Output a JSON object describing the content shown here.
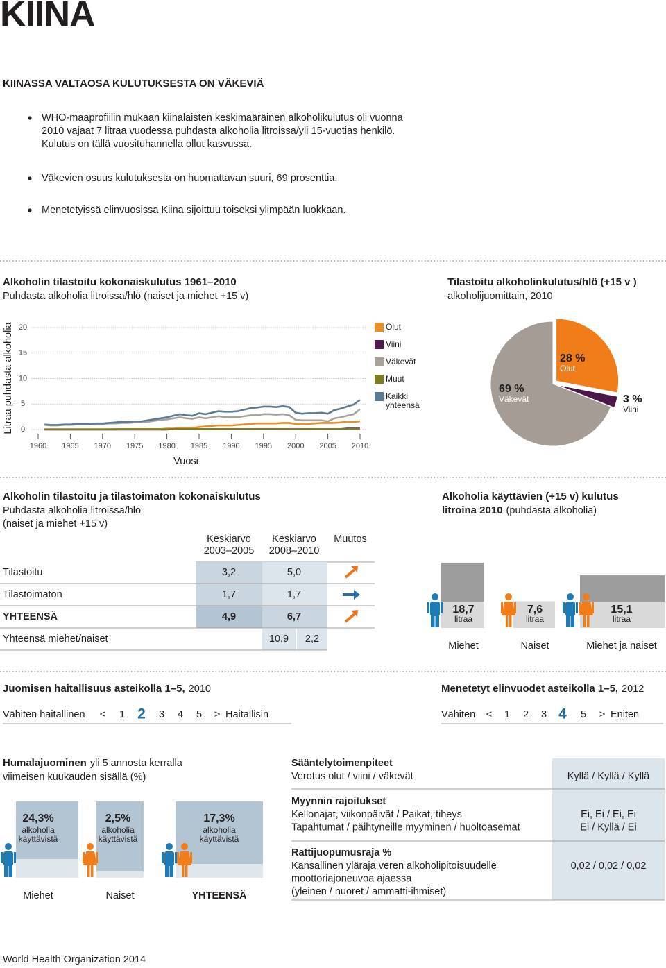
{
  "header": {
    "title": "KIINA"
  },
  "intro": {
    "heading": "KIINASSA VALTAOSA KULUTUKSESTA ON VÄKEVIÄ",
    "bullets": [
      [
        "WHO-maaprofiilin mukaan kiinalaisten keskimääräinen alkoholikulutus oli vuonna",
        "2010 vajaat 7 litraa vuodessa puhdasta alkoholia litroissa/yli 15-vuotias henkilö.",
        "Kulutus on tällä vuosituhannella ollut kasvussa."
      ],
      [
        "Väkevien osuus kulutuksesta on huomattavan suuri, 69 prosenttia."
      ],
      [
        "Menetetyissä elinvuosissa Kiina sijoittuu toiseksi ylimpään luokkaan."
      ]
    ]
  },
  "chart_data": [
    {
      "type": "line",
      "title": "Alkoholin tilastoitu kokonaiskulutus 1961–2010",
      "subtitle": "Puhdasta alkoholia litroissa/hlö (naiset ja miehet +15 v)",
      "y_label": "Litraa puhdasta alkoholia",
      "x_label": "Vuosi",
      "x": [
        1961,
        1962,
        1963,
        1964,
        1965,
        1966,
        1967,
        1968,
        1969,
        1970,
        1971,
        1972,
        1973,
        1974,
        1975,
        1976,
        1977,
        1978,
        1979,
        1980,
        1981,
        1982,
        1983,
        1984,
        1985,
        1986,
        1987,
        1988,
        1989,
        1990,
        1991,
        1992,
        1993,
        1994,
        1995,
        1996,
        1997,
        1998,
        1999,
        2000,
        2001,
        2002,
        2003,
        2004,
        2005,
        2006,
        2007,
        2008,
        2009,
        2010
      ],
      "series": [
        {
          "name": "Olut",
          "color": "#e98d24",
          "values": [
            0.05,
            0.05,
            0.05,
            0.05,
            0.05,
            0.05,
            0.05,
            0.05,
            0.05,
            0.05,
            0.05,
            0.1,
            0.1,
            0.1,
            0.1,
            0.1,
            0.1,
            0.1,
            0.1,
            0.2,
            0.2,
            0.3,
            0.3,
            0.3,
            0.5,
            0.6,
            0.7,
            0.8,
            0.8,
            0.8,
            0.9,
            1.0,
            1.1,
            1.2,
            1.2,
            1.2,
            1.2,
            1.3,
            1.3,
            1.1,
            1.1,
            1.1,
            1.2,
            1.3,
            1.3,
            1.3,
            1.4,
            1.5,
            1.5,
            1.6
          ]
        },
        {
          "name": "Viini",
          "color": "#4e1b4b",
          "values": [
            0,
            0,
            0,
            0,
            0,
            0,
            0,
            0,
            0,
            0,
            0,
            0,
            0,
            0,
            0,
            0,
            0,
            0,
            0,
            0,
            0.1,
            0.1,
            0.1,
            0.1,
            0.1,
            0.1,
            0.1,
            0.1,
            0.1,
            0.1,
            0.1,
            0.1,
            0.1,
            0.1,
            0.1,
            0.1,
            0.1,
            0.1,
            0.1,
            0.1,
            0.1,
            0.1,
            0.1,
            0.1,
            0.1,
            0.1,
            0.1,
            0.2,
            0.2,
            0.2
          ]
        },
        {
          "name": "Väkevät",
          "color": "#a8a29a",
          "values": [
            0.9,
            0.8,
            0.8,
            0.9,
            0.9,
            1.0,
            1.0,
            1.0,
            1.1,
            1.1,
            1.2,
            1.2,
            1.3,
            1.3,
            1.4,
            1.4,
            1.5,
            1.7,
            1.9,
            2.0,
            2.2,
            2.4,
            2.2,
            2.1,
            2.4,
            2.2,
            2.4,
            2.6,
            2.4,
            2.4,
            2.4,
            2.6,
            2.8,
            2.8,
            3.0,
            3.0,
            2.9,
            3.0,
            2.8,
            1.9,
            1.8,
            1.8,
            1.8,
            1.8,
            1.6,
            2.2,
            2.4,
            2.7,
            3.0,
            4.0
          ]
        },
        {
          "name": "Muut",
          "color": "#7c7c22",
          "values": [
            0.05,
            0.05,
            0.05,
            0.05,
            0.05,
            0.05,
            0.05,
            0.05,
            0.05,
            0.05,
            0.05,
            0.05,
            0.05,
            0.05,
            0.05,
            0.05,
            0.05,
            0.05,
            0.05,
            0.05,
            0.1,
            0.1,
            0.1,
            0.1,
            0.1,
            0.1,
            0.1,
            0.1,
            0.1,
            0.1,
            0.1,
            0.1,
            0.1,
            0.1,
            0.1,
            0.1,
            0.1,
            0.1,
            0.1,
            0.1,
            0.1,
            0.1,
            0.1,
            0.1,
            0.1,
            0.1,
            0.1,
            0.1,
            0.1,
            0.1
          ]
        },
        {
          "name": "Kaikki yhteensä",
          "color": "#5d7c93",
          "values": [
            1.0,
            0.9,
            0.9,
            1.0,
            1.0,
            1.1,
            1.1,
            1.1,
            1.2,
            1.2,
            1.3,
            1.4,
            1.5,
            1.5,
            1.6,
            1.6,
            1.8,
            2.0,
            2.2,
            2.4,
            2.7,
            3.0,
            2.8,
            2.7,
            3.2,
            3.0,
            3.3,
            3.6,
            3.5,
            3.5,
            3.6,
            3.9,
            4.2,
            4.3,
            4.5,
            4.5,
            4.4,
            4.6,
            4.4,
            3.3,
            3.1,
            3.2,
            3.2,
            3.3,
            3.1,
            3.8,
            4.1,
            4.5,
            4.9,
            5.8
          ]
        }
      ],
      "xlim": [
        1959,
        2011
      ],
      "ylim": [
        0,
        20
      ],
      "xticks": [
        1960,
        1965,
        1970,
        1975,
        1980,
        1985,
        1990,
        1995,
        2000,
        2005,
        2010
      ],
      "yticks": [
        0,
        5,
        10,
        15,
        20
      ],
      "grid": true
    },
    {
      "type": "pie",
      "title": "Tilastoitu alkoholinkulutus/hlö (+15 v )",
      "subtitle": "alkoholijuomittain, 2010",
      "categories": [
        "Olut",
        "Viini",
        "Väkevät"
      ],
      "values": [
        28,
        3,
        69
      ],
      "value_labels": [
        "28 %",
        "3 %",
        "69 %"
      ],
      "colors": [
        "#f07d1a",
        "#4b1648",
        "#a59d95"
      ]
    },
    {
      "type": "bar",
      "title": "Alkoholia käyttävien (+15 v) kulutus",
      "title2": "litroina 2010",
      "subtitle": "(puhdasta alkoholia)",
      "categories": [
        "Miehet",
        "Naiset",
        "Miehet ja naiset"
      ],
      "values": [
        18.7,
        7.6,
        15.1
      ],
      "value_labels": [
        "18,7",
        "7,6",
        "15,1"
      ],
      "value_unit": "litraa",
      "color": "#9d9d9d"
    }
  ],
  "consumption_table": {
    "title": "Alkoholin tilastoitu ja tilastoimaton kokonaiskulutus",
    "subtitle_lines": [
      "Puhdasta alkoholia litroissa/hlö",
      "(naiset ja miehet +15 v)"
    ],
    "headers": [
      [
        "Keskiarvo",
        "2003–2005"
      ],
      [
        "Keskiarvo",
        "2008–2010"
      ],
      [
        "Muutos"
      ]
    ],
    "rows": [
      [
        "Tilastoitu",
        "3,2",
        "5,0"
      ],
      [
        "Tilastoimaton",
        "1,7",
        "1,7"
      ],
      [
        "YHTEENSÄ",
        "4,9",
        "6,7"
      ]
    ],
    "ratio_row": [
      "Yhteensä miehet/naiset",
      "10,9",
      "2,2"
    ]
  },
  "harm_scale": {
    "title": "Juomisen haitallisuus asteikolla 1–5,",
    "year": "2010",
    "low_label": "Vähiten haitallinen",
    "open": "<",
    "scale": [
      1,
      2,
      3,
      4,
      5
    ],
    "close": ">",
    "high_label": "Haitallisin",
    "value": 2
  },
  "lost_years_scale": {
    "title": "Menetetyt elinvuodet asteikolla 1–5,",
    "year": "2012",
    "low_label": "Vähiten",
    "open": "<",
    "scale": [
      1,
      2,
      3,
      4,
      5
    ],
    "close": ">",
    "high_label": "Eniten",
    "value": 4
  },
  "binge": {
    "title": "Humalajuominen",
    "title_rest": "yli 5 annosta kerralla",
    "subtitle": "viimeisen kuukauden sisällä (%)",
    "sub_lines": [
      "alkoholia",
      "käyttävistä"
    ],
    "items": [
      {
        "label": "Miehet",
        "value": "24,3%"
      },
      {
        "label": "Naiset",
        "value": "2,5%"
      },
      {
        "label": "YHTEENSÄ",
        "value": "17,3%"
      }
    ]
  },
  "regulation": {
    "rows": [
      {
        "title": "Sääntelytoimenpiteet",
        "lines": [
          "Verotus olut / viini / väkevät"
        ],
        "values": [
          "Kyllä / Kyllä / Kyllä"
        ]
      },
      {
        "title": "Myynnin rajoitukset",
        "lines": [
          "Kellonajat, viikonpäivät / Paikat, tiheys",
          "Tapahtumat / päihtyneille myyminen / huoltoasemat"
        ],
        "values": [
          "Ei, Ei / Ei, Ei",
          "Ei / Kyllä / Ei"
        ]
      },
      {
        "title": "Rattijuopumusraja %",
        "lines": [
          "Kansallinen yläraja veren alkoholipitoisuudelle",
          "moottoriajoneuvoa ajaessa",
          "(yleinen / nuoret / ammatti-ihmiset)"
        ],
        "values": [
          "0,02 / 0,02 / 0,02"
        ]
      }
    ]
  },
  "footer": "World Health Organization 2014"
}
